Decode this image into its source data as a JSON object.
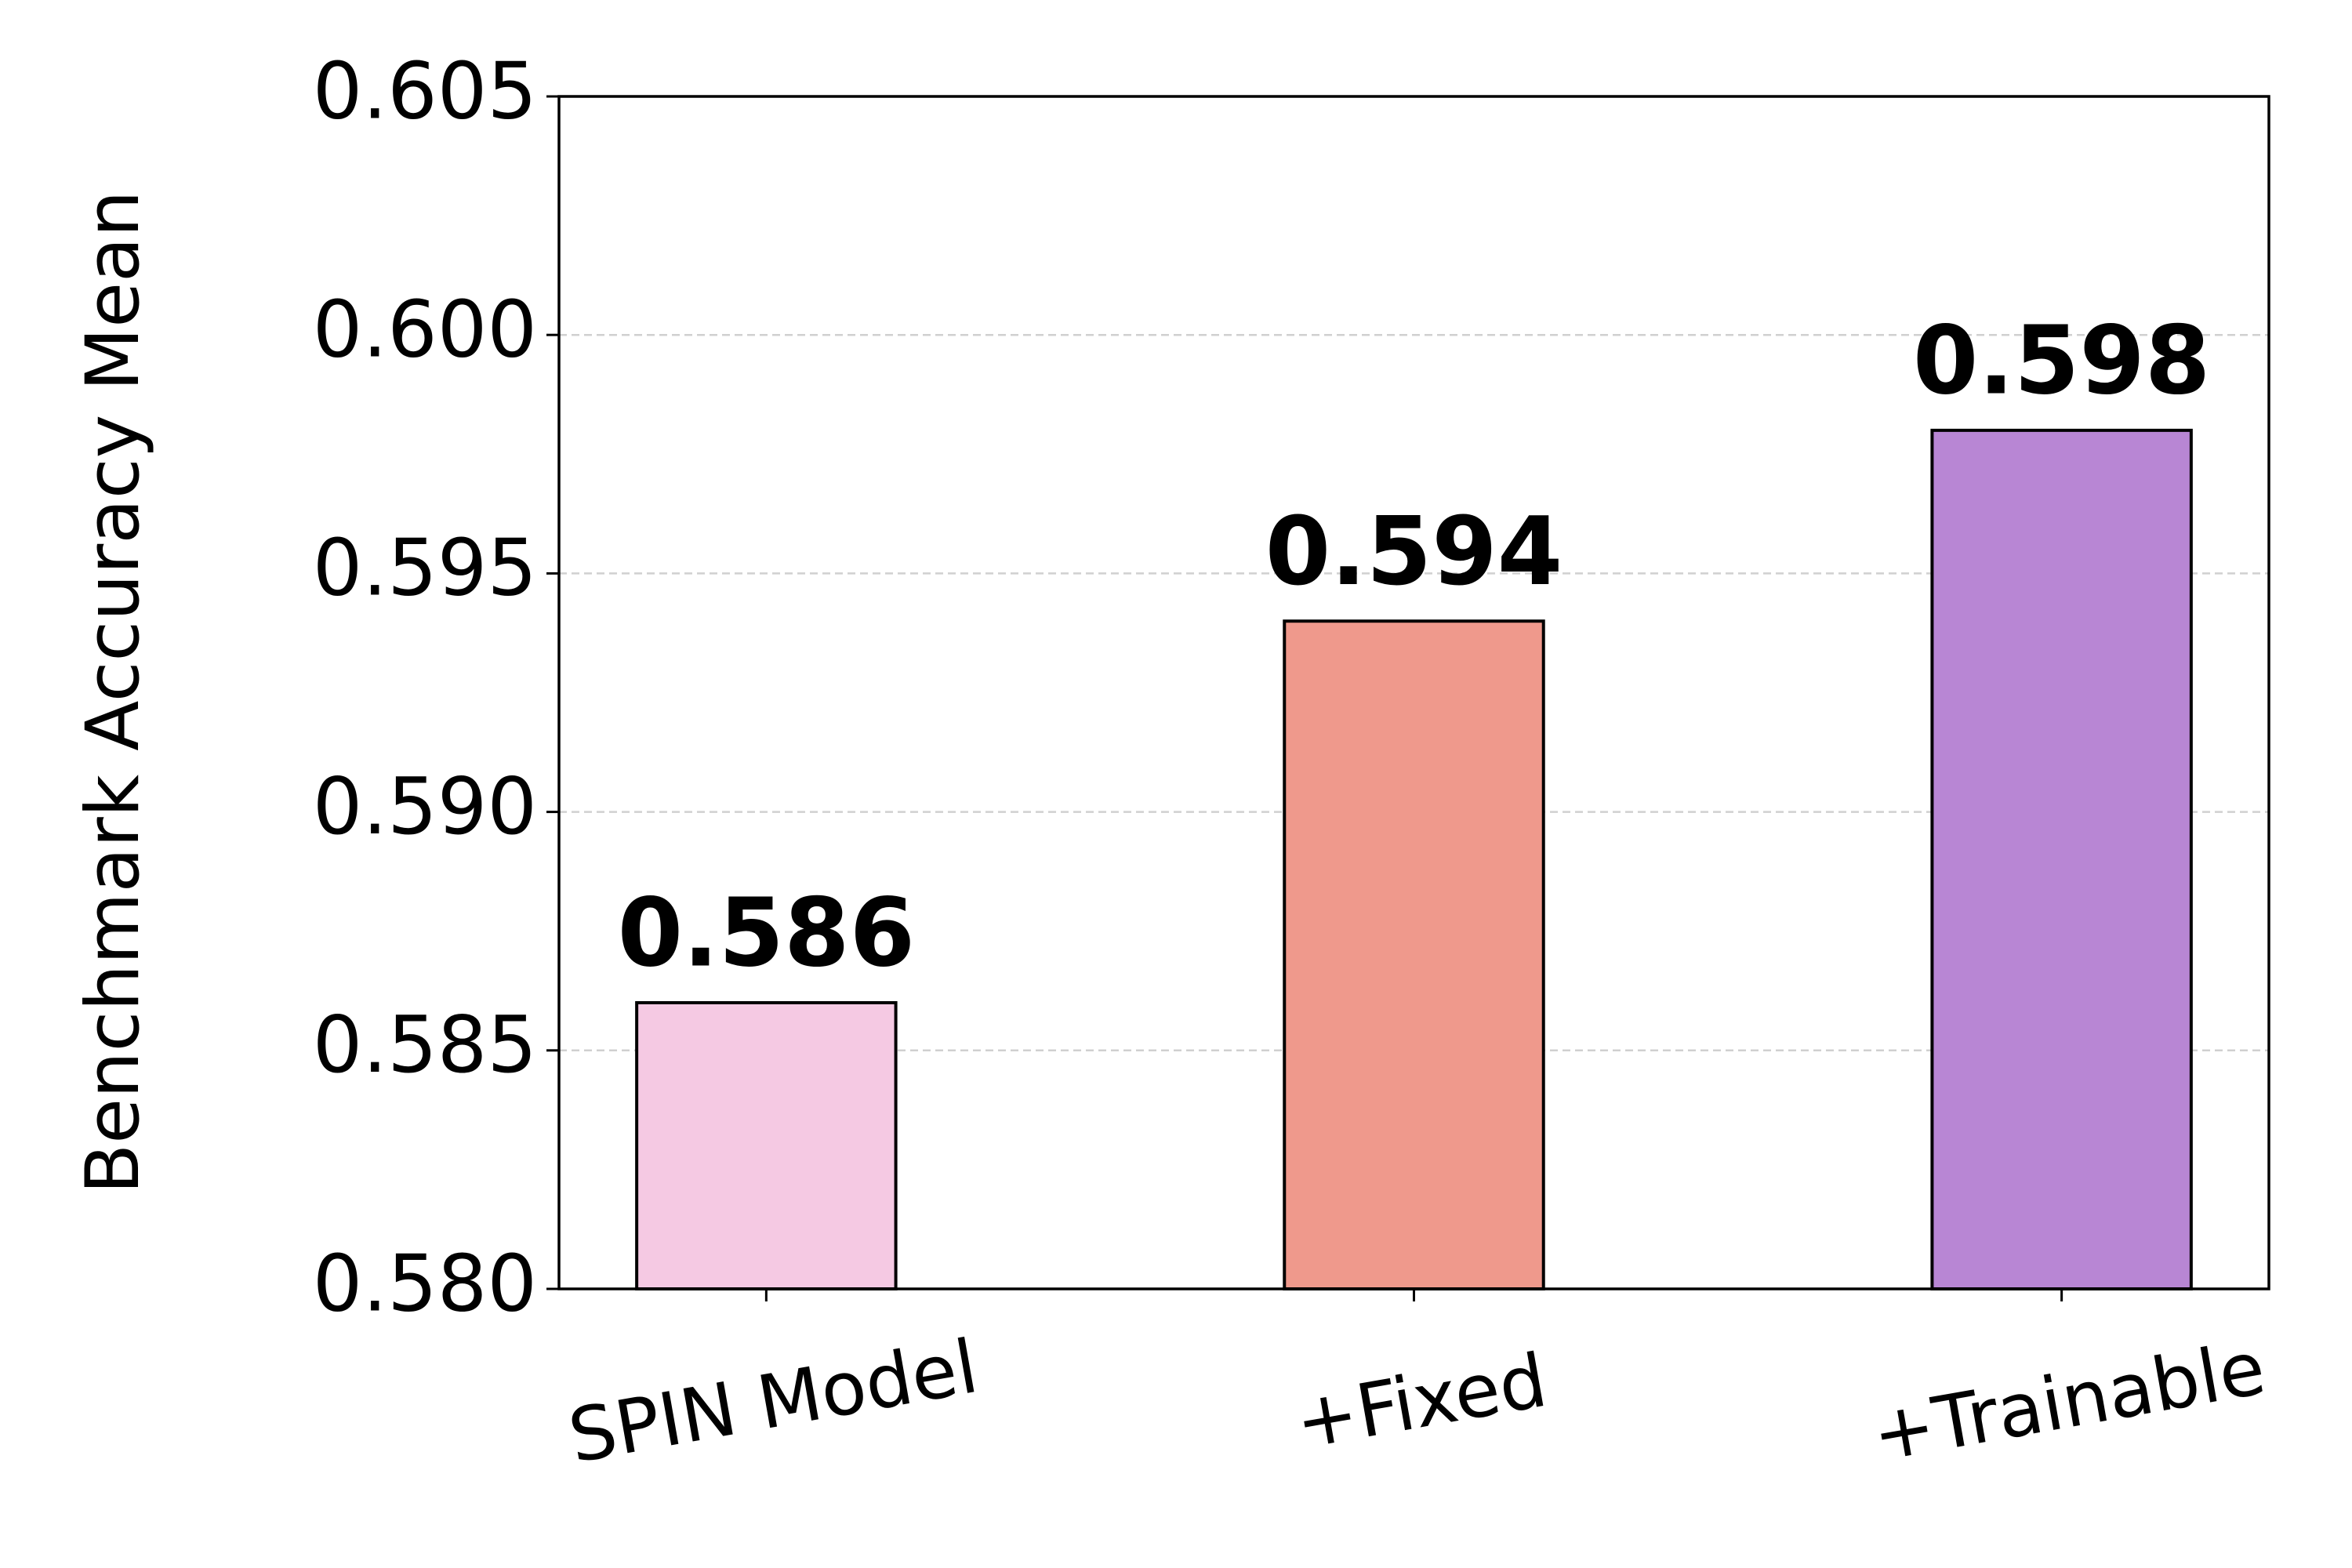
{
  "chart_data": {
    "type": "bar",
    "y_label": "Benchmark Accuracy Mean",
    "categories": [
      "SPIN Model",
      "+Fixed",
      "+Trainable"
    ],
    "values": [
      0.586,
      0.594,
      0.598
    ],
    "colors": [
      "#f5c9e3",
      "#ef998c",
      "#b886d4"
    ],
    "ylim": [
      0.58,
      0.605
    ],
    "yticks": [
      {
        "value": 0.58,
        "label": "0.580"
      },
      0.585,
      {
        "value": 0.59,
        "label": "0.590"
      },
      0.595,
      {
        "value": 0.6,
        "label": "0.600"
      },
      0.605
    ],
    "grid": true
  }
}
